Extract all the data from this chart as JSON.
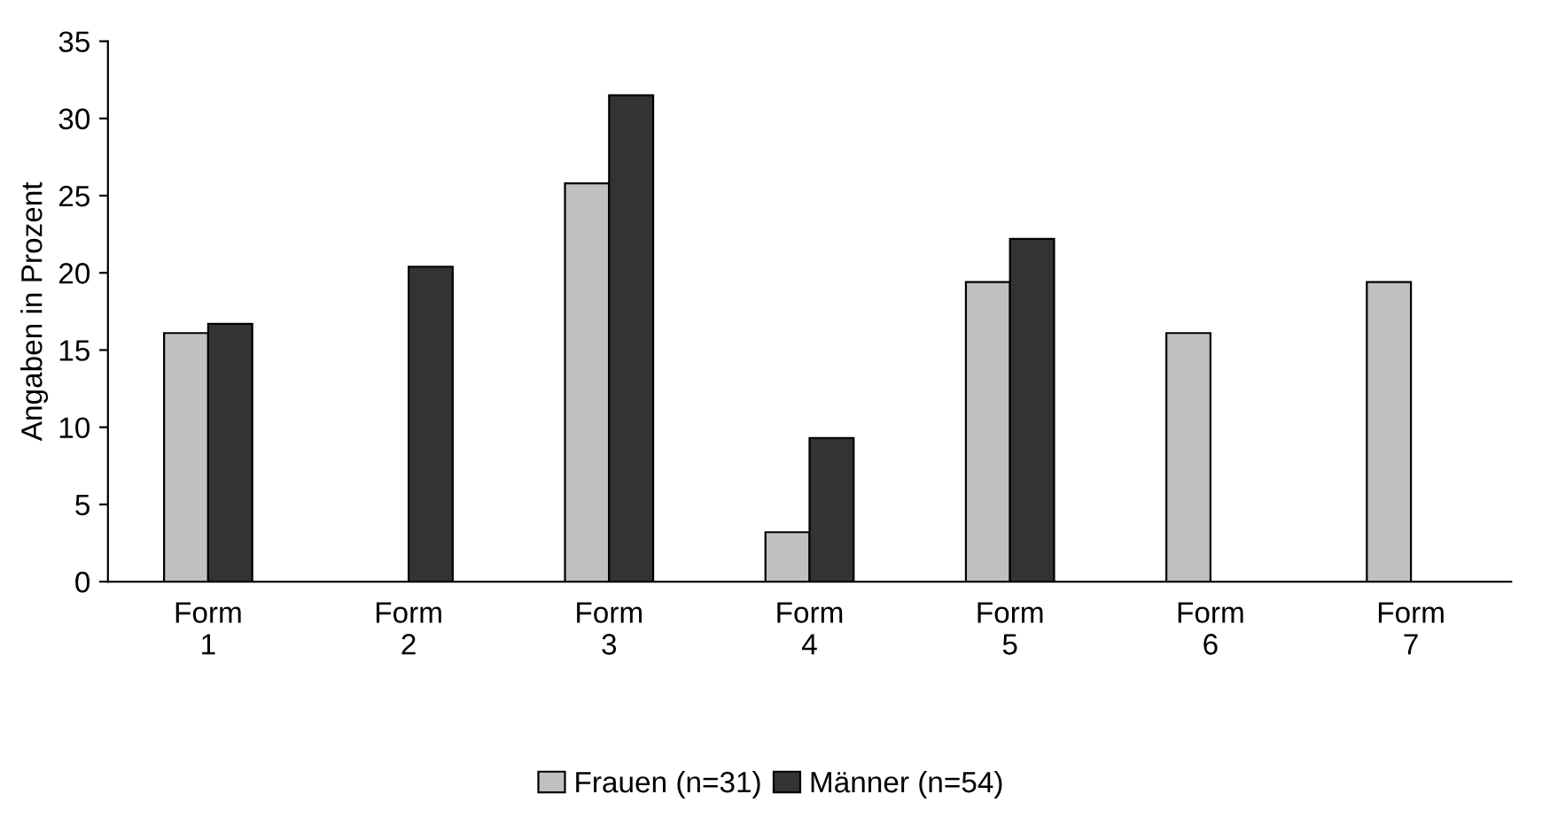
{
  "chart_data": {
    "type": "bar",
    "ylabel": "Angaben in Prozent",
    "categories": [
      "Form\n1",
      "Form\n2",
      "Form\n3",
      "Form\n4",
      "Form\n5",
      "Form\n6",
      "Form\n7"
    ],
    "series": [
      {
        "name": "Frauen (n=31)",
        "color": "#c0c0c0",
        "values": [
          16.1,
          null,
          25.8,
          3.2,
          19.4,
          16.1,
          19.4
        ]
      },
      {
        "name": "Männer (n=54)",
        "color": "#333333",
        "values": [
          16.7,
          20.4,
          31.5,
          9.3,
          22.2,
          null,
          null
        ]
      }
    ],
    "ylim": [
      0,
      35
    ],
    "yticks": [
      0,
      5,
      10,
      15,
      20,
      25,
      30,
      35
    ],
    "grid": false,
    "legend": "bottom"
  }
}
